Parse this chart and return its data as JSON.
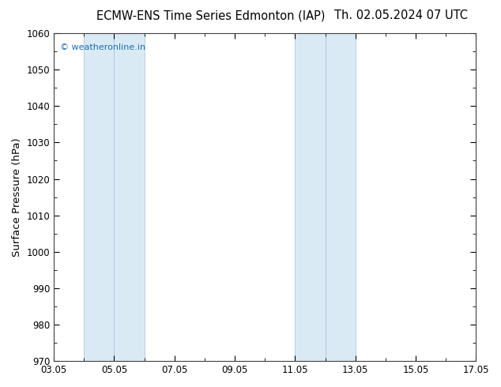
{
  "title_left": "ECMW-ENS Time Series Edmonton (IAP)",
  "title_right": "Th. 02.05.2024 07 UTC",
  "ylabel": "Surface Pressure (hPa)",
  "ylim": [
    970,
    1060
  ],
  "yticks": [
    970,
    980,
    990,
    1000,
    1010,
    1020,
    1030,
    1040,
    1050,
    1060
  ],
  "xlim_start": 0,
  "xlim_end": 14,
  "xtick_labels": [
    "03.05",
    "05.05",
    "07.05",
    "09.05",
    "11.05",
    "13.05",
    "15.05",
    "17.05"
  ],
  "xtick_positions": [
    0,
    2,
    4,
    6,
    8,
    10,
    12,
    14
  ],
  "shaded_bands": [
    {
      "xmin": 1.0,
      "xmax": 2.0
    },
    {
      "xmin": 2.0,
      "xmax": 3.0
    },
    {
      "xmin": 8.0,
      "xmax": 9.0
    },
    {
      "xmin": 9.0,
      "xmax": 10.0
    }
  ],
  "band_color": "#daeaf5",
  "band_border_color": "#a8c8e0",
  "watermark": "© weatheronline.in",
  "watermark_color": "#1a6db5",
  "bg_color": "#ffffff",
  "plot_bg_color": "#ffffff",
  "title_fontsize": 10.5,
  "tick_fontsize": 8.5,
  "ylabel_fontsize": 9.5,
  "spine_color": "#404040"
}
